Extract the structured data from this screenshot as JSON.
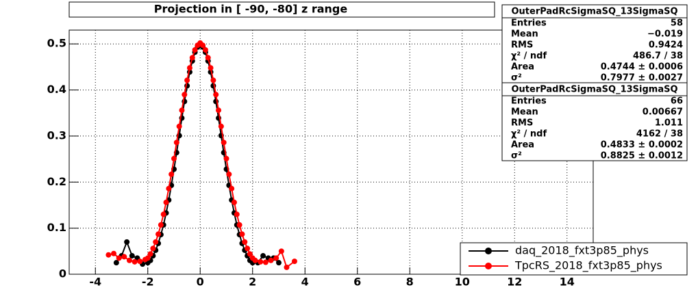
{
  "chart_data": {
    "type": "scatter",
    "title": "Projection in [ -90, -80] z range",
    "xlim": [
      -5,
      15
    ],
    "xticks": [
      -4,
      -2,
      0,
      2,
      4,
      6,
      8,
      10,
      12,
      14
    ],
    "ylim": [
      0,
      0.53
    ],
    "yticks": [
      0,
      0.1,
      0.2,
      0.3,
      0.4,
      0.5
    ],
    "grid": true,
    "series": [
      {
        "name": "daq_2018_fxt3p85_phys",
        "color": "#000000",
        "x": [
          -3.2,
          -3.0,
          -2.8,
          -2.6,
          -2.4,
          -2.2,
          -2.0,
          -1.9,
          -1.8,
          -1.7,
          -1.6,
          -1.5,
          -1.4,
          -1.3,
          -1.2,
          -1.1,
          -1.0,
          -0.9,
          -0.8,
          -0.7,
          -0.6,
          -0.5,
          -0.4,
          -0.3,
          -0.2,
          -0.1,
          0,
          0.1,
          0.2,
          0.3,
          0.4,
          0.5,
          0.6,
          0.7,
          0.8,
          0.9,
          1.0,
          1.1,
          1.2,
          1.3,
          1.4,
          1.5,
          1.6,
          1.7,
          1.8,
          1.9,
          2.0,
          2.2,
          2.4,
          2.6,
          2.8,
          3.0
        ],
        "values": [
          0.025,
          0.04,
          0.07,
          0.04,
          0.035,
          0.022,
          0.025,
          0.03,
          0.04,
          0.052,
          0.067,
          0.086,
          0.107,
          0.133,
          0.161,
          0.193,
          0.228,
          0.264,
          0.301,
          0.339,
          0.375,
          0.409,
          0.439,
          0.463,
          0.482,
          0.493,
          0.497,
          0.493,
          0.482,
          0.463,
          0.439,
          0.409,
          0.375,
          0.339,
          0.301,
          0.264,
          0.228,
          0.193,
          0.161,
          0.133,
          0.107,
          0.086,
          0.067,
          0.052,
          0.04,
          0.03,
          0.025,
          0.025,
          0.04,
          0.035,
          0.035,
          0.025
        ]
      },
      {
        "name": "TpcRS_2018_fxt3p85_phys",
        "color": "#ff0000",
        "x": [
          -3.5,
          -3.3,
          -3.1,
          -2.9,
          -2.7,
          -2.5,
          -2.3,
          -2.1,
          -2.0,
          -1.9,
          -1.8,
          -1.7,
          -1.6,
          -1.5,
          -1.4,
          -1.3,
          -1.2,
          -1.1,
          -1.0,
          -0.9,
          -0.8,
          -0.7,
          -0.6,
          -0.5,
          -0.4,
          -0.3,
          -0.2,
          -0.1,
          0,
          0.1,
          0.2,
          0.3,
          0.4,
          0.5,
          0.6,
          0.7,
          0.8,
          0.9,
          1.0,
          1.1,
          1.2,
          1.3,
          1.4,
          1.5,
          1.6,
          1.7,
          1.8,
          1.9,
          2.0,
          2.1,
          2.3,
          2.5,
          2.7,
          2.9,
          3.1,
          3.3,
          3.6
        ],
        "values": [
          0.042,
          0.045,
          0.035,
          0.038,
          0.03,
          0.027,
          0.028,
          0.032,
          0.035,
          0.044,
          0.056,
          0.07,
          0.087,
          0.107,
          0.13,
          0.156,
          0.186,
          0.217,
          0.251,
          0.286,
          0.321,
          0.356,
          0.39,
          0.421,
          0.448,
          0.47,
          0.487,
          0.497,
          0.502,
          0.497,
          0.487,
          0.47,
          0.448,
          0.421,
          0.39,
          0.356,
          0.321,
          0.286,
          0.251,
          0.217,
          0.186,
          0.156,
          0.13,
          0.107,
          0.087,
          0.07,
          0.056,
          0.044,
          0.035,
          0.03,
          0.027,
          0.026,
          0.03,
          0.035,
          0.05,
          0.015,
          0.028
        ]
      }
    ],
    "stats": [
      {
        "title": "OuterPadRcSigmaSQ_13SigmaSQ",
        "rows": [
          {
            "label": "Entries",
            "value": "58"
          },
          {
            "label": "Mean",
            "value": "−0.019"
          },
          {
            "label": "RMS",
            "value": "0.9424"
          },
          {
            "label": "χ² / ndf",
            "value": "486.7 / 38"
          },
          {
            "label": "Area",
            "value": "0.4744 ± 0.0006"
          },
          {
            "label": "σ²",
            "value": "0.7977 ± 0.0027"
          }
        ]
      },
      {
        "title": "OuterPadRcSigmaSQ_13SigmaSQ",
        "rows": [
          {
            "label": "Entries",
            "value": "66"
          },
          {
            "label": "Mean",
            "value": "0.00667"
          },
          {
            "label": "RMS",
            "value": "1.011"
          },
          {
            "label": "χ² / ndf",
            "value": "4162 / 38"
          },
          {
            "label": "Area",
            "value": "0.4833 ± 0.0002"
          },
          {
            "label": "σ²",
            "value": "0.8825 ± 0.0012"
          }
        ]
      }
    ]
  }
}
